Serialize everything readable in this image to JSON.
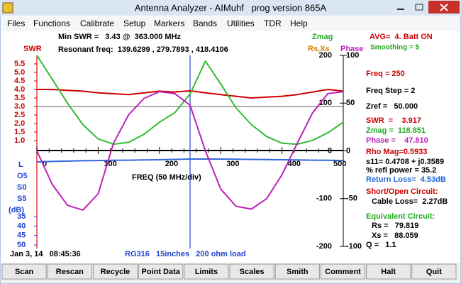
{
  "window": {
    "title": "Antenna Analyzer - AIMuhf   prog version 865A"
  },
  "menu": [
    "Files",
    "Functions",
    "Calibrate",
    "Setup",
    "Markers",
    "Bands",
    "Utilities",
    "TDR",
    "Help"
  ],
  "header": {
    "min_swr": "Min SWR =   3.43 @  363.000 MHz",
    "resonant": "Resonant freq:  139.6299 , 279.7893 , 418.4106",
    "zmag_label": "Zmag",
    "rsxs_label": "Rs,Xs",
    "phase_label": "Phase",
    "swr_label": "SWR",
    "avg": "AVG=  4. Batt ON",
    "smoothing": "Smoothing = 5"
  },
  "plot": {
    "x_label": "FREQ (50 MHz/div)",
    "xlim": [
      0,
      500
    ],
    "xticks": [
      0,
      100,
      200,
      300,
      400,
      500
    ],
    "cursor_x": 250,
    "x": [
      0,
      25,
      50,
      75,
      100,
      125,
      150,
      175,
      200,
      225,
      250,
      275,
      300,
      325,
      350,
      375,
      400,
      425,
      450,
      475,
      500
    ],
    "swr": {
      "color": "#cc0000",
      "ylim": [
        0.5,
        5.5
      ],
      "reference": 3.0,
      "yticks": [
        {
          "value": 1.0,
          "label": "1.0"
        },
        1.5,
        {
          "value": 2.0,
          "label": "2.0"
        },
        2.5,
        {
          "value": 3.0,
          "label": "3.0"
        },
        3.5,
        {
          "value": 4.0,
          "label": "4.0"
        },
        4.5,
        {
          "value": 5.0,
          "label": "5.0"
        },
        5.5
      ],
      "values": [
        4.0,
        4.0,
        3.95,
        3.9,
        3.8,
        3.75,
        3.7,
        3.8,
        3.9,
        3.85,
        3.92,
        3.8,
        3.7,
        3.6,
        3.5,
        3.55,
        3.6,
        3.7,
        3.85,
        4.0,
        3.9
      ]
    },
    "zmag": {
      "color": "#33bb33",
      "ylim": [
        -200,
        200
      ],
      "yticks": [
        200,
        100,
        0,
        -100,
        -200
      ],
      "values": [
        200,
        150,
        100,
        55,
        25,
        14,
        18,
        35,
        60,
        80,
        119,
        188,
        140,
        90,
        55,
        30,
        16,
        14,
        22,
        38,
        60
      ]
    },
    "phase": {
      "color": "#bb22bb",
      "ylim": [
        -100,
        100
      ],
      "yticks": [
        100,
        50,
        0,
        -50,
        -100
      ],
      "values": [
        0,
        -35,
        -57,
        -62,
        -45,
        8,
        38,
        55,
        62,
        60,
        47.8,
        0,
        -40,
        -58,
        -61,
        -50,
        -25,
        8,
        40,
        60,
        62
      ]
    },
    "return_loss": {
      "color": "#3366dd",
      "ylim": [
        0,
        50
      ],
      "axis_labels": [
        "L",
        "O5",
        "S0",
        "S5",
        "(dB)"
      ],
      "yticks": [
        35,
        40,
        45,
        50
      ],
      "values": [
        6,
        5.8,
        5.6,
        5.4,
        5.3,
        5.2,
        5.1,
        5.0,
        4.9,
        4.7,
        4.53,
        4.5,
        4.5,
        4.6,
        4.7,
        4.8,
        4.9,
        5.0,
        5.1,
        5.2,
        5.3
      ]
    }
  },
  "readout": [
    "Freq = 250",
    "Freq Step = 2",
    "Zref =   50.000",
    "SWR  =    3.917",
    "Zmag =  118.851",
    "Phase =    47.810",
    "Rho Mag=0.5933",
    "s11= 0.4708 + j0.3589",
    "% refl power = 35.2",
    "Return Loss=  4.53dB",
    "Short/Open Circuit:",
    "Cable Loss=  2.27dB",
    "Equivalent Circuit:",
    "Rs =   79.819",
    "Xs =   88.059",
    "Q =   1.1"
  ],
  "status": {
    "date": "Jan 3, 14   08:45:36",
    "cable": "RG316   15inches   200 ohm load"
  },
  "buttons": [
    "Scan",
    "Rescan",
    "Recycle",
    "Point Data",
    "Limits",
    "Scales",
    "Smith",
    "Comment",
    "Halt",
    "Quit"
  ]
}
